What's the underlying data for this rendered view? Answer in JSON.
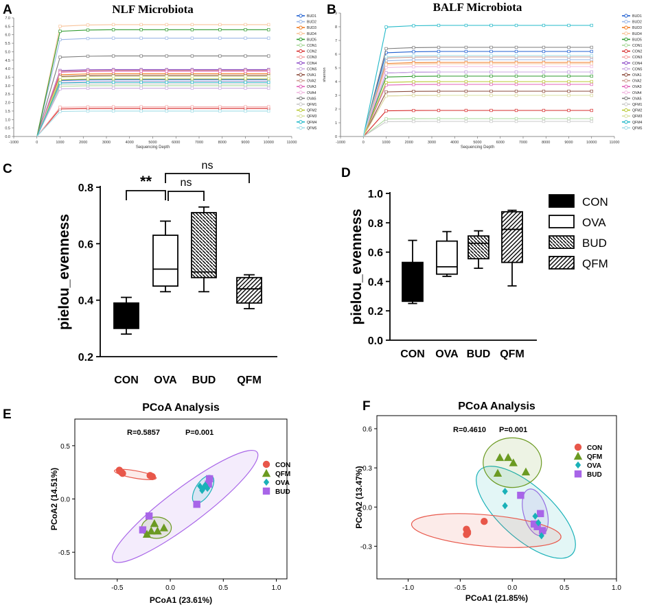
{
  "panel_letters": {
    "a": "A",
    "b": "B",
    "c": "C",
    "d": "D",
    "e": "E",
    "f": "F"
  },
  "colors": {
    "CON": "#e8574a",
    "QFM": "#6b9a22",
    "OVA": "#1ab1b8",
    "BUD": "#a865e8",
    "BUD1": "#1f5fd0",
    "BUD2": "#9ab6e6",
    "BUD3": "#f07a20",
    "BUD4": "#f8c49a",
    "BUD5": "#2c9a2c",
    "CON1": "#a8d89a",
    "CON2": "#d62a2a",
    "CON3": "#f4a0a0",
    "CON4": "#9050c8",
    "CON5": "#c8a8e0",
    "OVA1": "#8a4a3a",
    "OVA2": "#cc9a90",
    "OVA3": "#e060b8",
    "OVA4": "#f0b8e0",
    "OVA5": "#7a7a7a",
    "QFM1": "#c8c8c8",
    "QFM2": "#b8c830",
    "QFM3": "#d8e0a0",
    "QFM4": "#20b8c8",
    "QFM5": "#a0dce6"
  },
  "chart_data": [
    {
      "id": "A",
      "type": "line",
      "title": "NLF Microbiota",
      "xlabel": "Sequencing Depth",
      "ylabel": "shannon",
      "xlim": [
        -1000,
        11000
      ],
      "ylim": [
        0,
        7.0
      ],
      "xticks": [
        -1000,
        0,
        1000,
        2000,
        3000,
        4000,
        5000,
        6000,
        7000,
        8000,
        9000,
        10000,
        11000
      ],
      "yticks": [
        "0.0",
        "0.5",
        "1.0",
        "1.5",
        "2.0",
        "2.5",
        "3.0",
        "3.5",
        "4.0",
        "4.5",
        "5.0",
        "5.5",
        "6.0",
        "6.5",
        "7.0"
      ],
      "x": [
        0,
        1000,
        2200,
        3300,
        4500,
        5600,
        6700,
        7900,
        9000,
        10000
      ],
      "legend": [
        "BUD1",
        "BUD2",
        "BUD3",
        "BUD4",
        "BUD5",
        "CON1",
        "CON2",
        "CON3",
        "CON4",
        "CON5",
        "OVA1",
        "OVA2",
        "OVA3",
        "OVA4",
        "OVA5",
        "QFM1",
        "QFM2",
        "QFM3",
        "QFM4",
        "QFM5"
      ],
      "plateaus": [
        3.35,
        5.8,
        3.7,
        6.6,
        6.3,
        3.0,
        1.65,
        1.75,
        3.95,
        2.85,
        3.6,
        3.9,
        3.85,
        3.25,
        4.75,
        3.1,
        3.4,
        3.55,
        3.2,
        1.5
      ]
    },
    {
      "id": "B",
      "type": "line",
      "title": "BALF Microbiota",
      "xlabel": "Sequencing Depth",
      "ylabel": "shannon",
      "xlim": [
        -1000,
        11000
      ],
      "ylim": [
        0,
        9
      ],
      "xticks": [
        -1000,
        0,
        1000,
        2000,
        3000,
        4000,
        5000,
        6000,
        7000,
        8000,
        9000,
        10000,
        11000
      ],
      "yticks": [
        "0",
        "1",
        "2",
        "3",
        "4",
        "5",
        "6",
        "7",
        "8",
        "9"
      ],
      "x": [
        0,
        1000,
        2200,
        3300,
        4500,
        5600,
        6700,
        7900,
        9000,
        10000
      ],
      "legend": [
        "BUD1",
        "BUD2",
        "BUD3",
        "BUD4",
        "BUD5",
        "CON1",
        "CON2",
        "CON3",
        "CON4",
        "CON5",
        "OVA1",
        "OVA2",
        "OVA3",
        "OVA4",
        "OVA5",
        "QFM1",
        "QFM2",
        "QFM3",
        "QFM4",
        "QFM5"
      ],
      "plateaus": [
        6.2,
        5.6,
        5.4,
        5.3,
        4.4,
        1.3,
        1.9,
        3.0,
        4.7,
        4.7,
        3.3,
        5.8,
        3.8,
        5.1,
        6.5,
        1.1,
        4.0,
        3.0,
        8.1,
        5.9
      ]
    },
    {
      "id": "C",
      "type": "box",
      "ylabel": "pielou_evenness",
      "ylim": [
        0.2,
        0.8
      ],
      "yticks": [
        "0.2",
        "0.4",
        "0.6",
        "0.8"
      ],
      "categories": [
        "CON",
        "OVA",
        "BUD",
        "QFM"
      ],
      "boxes": [
        {
          "group": "CON",
          "min": 0.28,
          "q1": 0.3,
          "median": 0.34,
          "q3": 0.39,
          "max": 0.41
        },
        {
          "group": "OVA",
          "min": 0.43,
          "q1": 0.45,
          "median": 0.51,
          "q3": 0.63,
          "max": 0.68
        },
        {
          "group": "BUD",
          "min": 0.43,
          "q1": 0.48,
          "median": 0.5,
          "q3": 0.71,
          "max": 0.73
        },
        {
          "group": "QFM",
          "min": 0.37,
          "q1": 0.39,
          "median": 0.44,
          "q3": 0.48,
          "max": 0.49
        }
      ],
      "annotations": [
        {
          "from": "CON",
          "to": "OVA",
          "label": "**"
        },
        {
          "from": "OVA",
          "to": "BUD",
          "label": "ns"
        },
        {
          "from": "OVA",
          "to": "QFM",
          "label": "ns"
        }
      ]
    },
    {
      "id": "D",
      "type": "box",
      "ylabel": "pielou_evenness",
      "ylim": [
        0.0,
        1.0
      ],
      "yticks": [
        "0.0",
        "0.2",
        "0.4",
        "0.6",
        "0.8",
        "1.0"
      ],
      "categories": [
        "CON",
        "OVA",
        "BUD",
        "QFM"
      ],
      "legend": [
        "CON",
        "OVA",
        "BUD",
        "QFM"
      ],
      "boxes": [
        {
          "group": "CON",
          "min": 0.25,
          "q1": 0.265,
          "median": 0.28,
          "q3": 0.53,
          "max": 0.68
        },
        {
          "group": "OVA",
          "min": 0.435,
          "q1": 0.45,
          "median": 0.5,
          "q3": 0.675,
          "max": 0.74
        },
        {
          "group": "BUD",
          "min": 0.49,
          "q1": 0.555,
          "median": 0.66,
          "q3": 0.71,
          "max": 0.745
        },
        {
          "group": "QFM",
          "min": 0.37,
          "q1": 0.53,
          "median": 0.755,
          "q3": 0.875,
          "max": 0.885
        }
      ]
    },
    {
      "id": "E",
      "type": "scatter",
      "title": "PCoA Analysis",
      "xlabel": "PCoA1 (23.61%)",
      "ylabel": "PCoA2 (14.51%)",
      "stats": {
        "r": "R=0.5857",
        "p": "P=0.001"
      },
      "xlim": [
        -0.9,
        1.1
      ],
      "ylim": [
        -0.75,
        0.75
      ],
      "xticks": [
        "-0.5",
        "0.0",
        "0.5",
        "1.0"
      ],
      "yticks": [
        "0.5",
        "0.0",
        "-0.5"
      ],
      "legend": [
        "CON",
        "QFM",
        "OVA",
        "BUD"
      ],
      "points": {
        "CON": [
          [
            -0.48,
            0.27
          ],
          [
            -0.46,
            0.25
          ],
          [
            -0.45,
            0.24
          ],
          [
            -0.19,
            0.22
          ],
          [
            -0.17,
            0.21
          ]
        ],
        "QFM": [
          [
            -0.15,
            -0.23
          ],
          [
            -0.18,
            -0.3
          ],
          [
            -0.12,
            -0.3
          ],
          [
            -0.06,
            -0.27
          ],
          [
            -0.22,
            -0.33
          ]
        ],
        "OVA": [
          [
            0.28,
            0.12
          ],
          [
            0.32,
            0.11
          ],
          [
            0.35,
            0.1
          ],
          [
            0.3,
            0.08
          ],
          [
            0.33,
            0.13
          ]
        ],
        "BUD": [
          [
            0.37,
            0.19
          ],
          [
            0.36,
            0.14
          ],
          [
            0.25,
            -0.05
          ],
          [
            -0.2,
            -0.16
          ],
          [
            -0.26,
            -0.29
          ]
        ]
      },
      "ellipses": {
        "CON": {
          "cx": -0.33,
          "cy": 0.23,
          "rx": 0.2,
          "ry": 0.035,
          "angle": -10
        },
        "QFM": {
          "cx": -0.13,
          "cy": -0.27,
          "rx": 0.14,
          "ry": 0.1,
          "angle": 0
        },
        "OVA": {
          "cx": 0.31,
          "cy": 0.09,
          "rx": 0.15,
          "ry": 0.07,
          "angle": 57
        },
        "BUD": {
          "cx": 0.14,
          "cy": -0.07,
          "rx": 0.85,
          "ry": 0.17,
          "angle": 37
        }
      }
    },
    {
      "id": "F",
      "type": "scatter",
      "title": "PCoA Analysis",
      "xlabel": "PCoA1 (21.85%)",
      "ylabel": "PCoA2 (13.47%)",
      "stats": {
        "r": "R=0.4610",
        "p": "P=0.001"
      },
      "xlim": [
        -1.3,
        1.0
      ],
      "ylim": [
        -0.55,
        0.7
      ],
      "xticks": [
        "-1.0",
        "-0.5",
        "0.0",
        "0.5",
        "1.0"
      ],
      "yticks": [
        "0.6",
        "0.3",
        "0.0",
        "-0.3"
      ],
      "legend": [
        "CON",
        "QFM",
        "OVA",
        "BUD"
      ],
      "points": {
        "CON": [
          [
            -0.44,
            -0.17
          ],
          [
            -0.43,
            -0.19
          ],
          [
            -0.44,
            -0.21
          ],
          [
            -0.43,
            -0.2
          ],
          [
            -0.27,
            -0.11
          ]
        ],
        "QFM": [
          [
            -0.12,
            0.38
          ],
          [
            -0.04,
            0.38
          ],
          [
            0.01,
            0.34
          ],
          [
            0.13,
            0.27
          ],
          [
            -0.14,
            0.26
          ]
        ],
        "OVA": [
          [
            -0.07,
            0.12
          ],
          [
            -0.07,
            0.01
          ],
          [
            0.22,
            -0.07
          ],
          [
            0.25,
            -0.12
          ],
          [
            0.28,
            -0.22
          ]
        ],
        "BUD": [
          [
            0.08,
            0.09
          ],
          [
            0.27,
            -0.05
          ],
          [
            0.21,
            -0.13
          ],
          [
            0.24,
            -0.15
          ],
          [
            0.29,
            -0.18
          ]
        ]
      },
      "ellipses": {
        "CON": {
          "cx": -0.25,
          "cy": -0.18,
          "rx": 0.72,
          "ry": 0.12,
          "angle": -5
        },
        "QFM": {
          "cx": 0.0,
          "cy": 0.34,
          "rx": 0.28,
          "ry": 0.19,
          "angle": 0
        },
        "OVA": {
          "cx": 0.13,
          "cy": -0.04,
          "rx": 0.6,
          "ry": 0.2,
          "angle": -42
        },
        "BUD": {
          "cx": 0.22,
          "cy": -0.04,
          "rx": 0.23,
          "ry": 0.09,
          "angle": -75
        }
      }
    }
  ]
}
